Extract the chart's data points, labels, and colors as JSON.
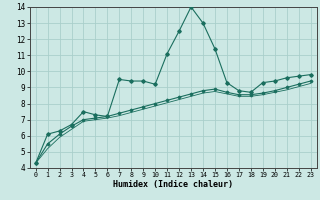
{
  "xlabel": "Humidex (Indice chaleur)",
  "xlim": [
    -0.5,
    23.5
  ],
  "ylim": [
    4,
    14
  ],
  "yticks": [
    4,
    5,
    6,
    7,
    8,
    9,
    10,
    11,
    12,
    13,
    14
  ],
  "xticks": [
    0,
    1,
    2,
    3,
    4,
    5,
    6,
    7,
    8,
    9,
    10,
    11,
    12,
    13,
    14,
    15,
    16,
    17,
    18,
    19,
    20,
    21,
    22,
    23
  ],
  "bg_color": "#cce8e4",
  "grid_color": "#aacfcb",
  "line_color": "#1a6e5e",
  "line1_x": [
    0,
    1,
    2,
    3,
    4,
    5,
    6,
    7,
    8,
    9,
    10,
    11,
    12,
    13,
    14,
    15,
    16,
    17,
    18,
    19,
    20,
    21,
    22,
    23
  ],
  "line1_y": [
    4.3,
    6.1,
    6.3,
    6.7,
    7.5,
    7.3,
    7.2,
    9.5,
    9.4,
    9.4,
    9.2,
    11.1,
    12.5,
    14.0,
    13.0,
    11.4,
    9.3,
    8.8,
    8.7,
    9.3,
    9.4,
    9.6,
    9.7,
    9.8
  ],
  "line2_x": [
    0,
    1,
    2,
    3,
    4,
    5,
    6,
    7,
    8,
    9,
    10,
    11,
    12,
    13,
    14,
    15,
    16,
    17,
    18,
    19,
    20,
    21,
    22,
    23
  ],
  "line2_y": [
    4.3,
    5.5,
    6.1,
    6.6,
    7.0,
    7.1,
    7.2,
    7.4,
    7.6,
    7.8,
    8.0,
    8.2,
    8.4,
    8.6,
    8.8,
    8.9,
    8.7,
    8.55,
    8.55,
    8.65,
    8.8,
    9.0,
    9.2,
    9.4
  ],
  "line3_x": [
    0,
    1,
    2,
    3,
    4,
    5,
    6,
    7,
    8,
    9,
    10,
    11,
    12,
    13,
    14,
    15,
    16,
    17,
    18,
    19,
    20,
    21,
    22,
    23
  ],
  "line3_y": [
    4.3,
    5.2,
    5.9,
    6.4,
    6.9,
    7.0,
    7.1,
    7.25,
    7.45,
    7.65,
    7.85,
    8.05,
    8.25,
    8.45,
    8.65,
    8.75,
    8.6,
    8.45,
    8.45,
    8.55,
    8.7,
    8.85,
    9.05,
    9.25
  ]
}
